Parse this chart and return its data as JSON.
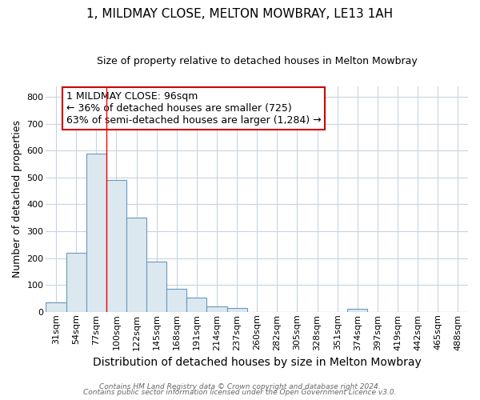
{
  "title1": "1, MILDMAY CLOSE, MELTON MOWBRAY, LE13 1AH",
  "title2": "Size of property relative to detached houses in Melton Mowbray",
  "xlabel": "Distribution of detached houses by size in Melton Mowbray",
  "ylabel": "Number of detached properties",
  "categories": [
    "31sqm",
    "54sqm",
    "77sqm",
    "100sqm",
    "122sqm",
    "145sqm",
    "168sqm",
    "191sqm",
    "214sqm",
    "237sqm",
    "260sqm",
    "282sqm",
    "305sqm",
    "328sqm",
    "351sqm",
    "374sqm",
    "397sqm",
    "419sqm",
    "442sqm",
    "465sqm",
    "488sqm"
  ],
  "values": [
    35,
    220,
    590,
    490,
    350,
    188,
    85,
    52,
    20,
    15,
    0,
    0,
    0,
    0,
    0,
    10,
    0,
    0,
    0,
    0,
    0
  ],
  "bar_color": "#dce8f0",
  "bar_edge_color": "#6699bb",
  "red_line_index": 2.5,
  "annotation_text": "1 MILDMAY CLOSE: 96sqm\n← 36% of detached houses are smaller (725)\n63% of semi-detached houses are larger (1,284) →",
  "annotation_box_color": "#ffffff",
  "annotation_box_edge_color": "#cc0000",
  "ylim": [
    0,
    840
  ],
  "yticks": [
    0,
    100,
    200,
    300,
    400,
    500,
    600,
    700,
    800
  ],
  "footer1": "Contains HM Land Registry data © Crown copyright and database right 2024.",
  "footer2": "Contains public sector information licensed under the Open Government Licence v3.0.",
  "background_color": "#ffffff",
  "grid_color": "#c8d4e0",
  "title1_fontsize": 11,
  "title2_fontsize": 9,
  "xlabel_fontsize": 10,
  "ylabel_fontsize": 9,
  "tick_fontsize": 8,
  "annot_fontsize": 9,
  "footer_fontsize": 6.5
}
